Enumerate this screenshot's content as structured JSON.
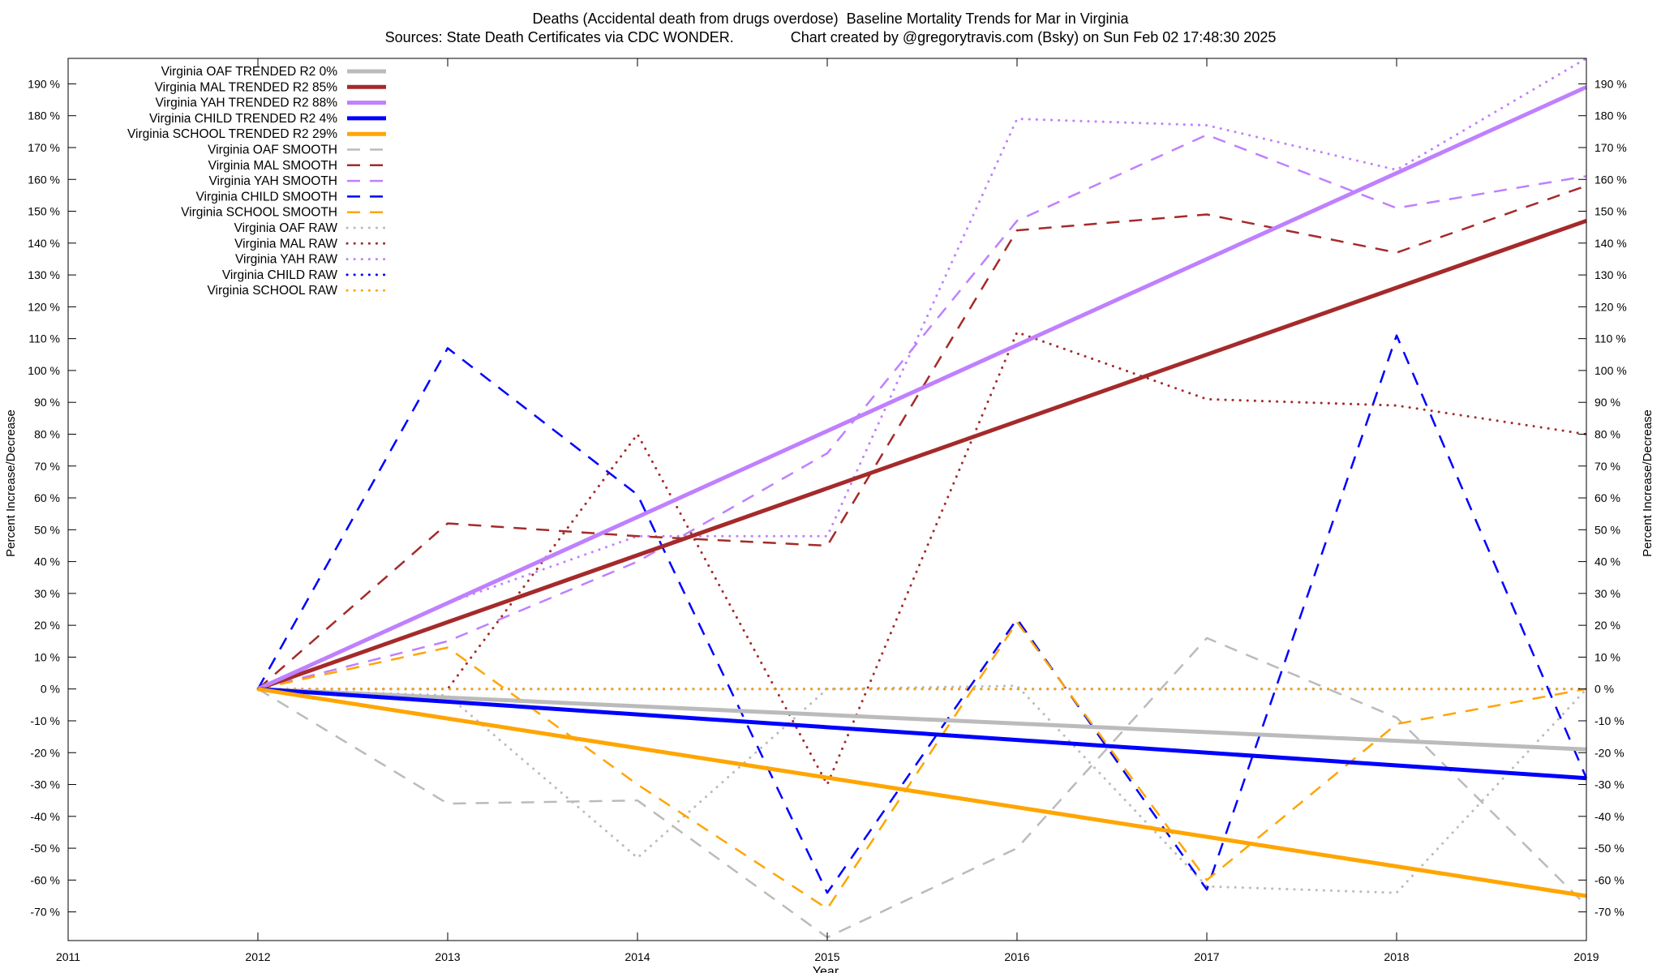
{
  "chart_data": {
    "type": "line",
    "title": "Deaths (Accidental death from drugs overdose)  Baseline Mortality Trends for Mar in Virginia",
    "subtitle": "Sources: State Death Certificates via CDC WONDER.              Chart created by @gregorytravis.com (Bsky) on Sun Feb 02 17:48:30 2025",
    "xlabel": "Year",
    "ylabel": "Percent Increase/Decrease",
    "xlim": [
      2011,
      2019
    ],
    "ylim": [
      -79,
      198
    ],
    "x_ticks": [
      "2011",
      "2012",
      "2013",
      "2014",
      "2015",
      "2016",
      "2017",
      "2018",
      "2019"
    ],
    "y_ticks": [
      190,
      180,
      170,
      160,
      150,
      140,
      130,
      120,
      110,
      100,
      90,
      80,
      70,
      60,
      50,
      40,
      30,
      20,
      10,
      0,
      -10,
      -20,
      -30,
      -40,
      -50,
      -60,
      -70
    ],
    "y_tick_suffix": " %",
    "grid": false,
    "legend_position": "top-left",
    "series": [
      {
        "name": "Virginia OAF TRENDED R2  0%",
        "style": "trend",
        "color": "#bbbbbb",
        "x": [
          2012,
          2019
        ],
        "y": [
          0,
          -19
        ]
      },
      {
        "name": "Virginia MAL TRENDED R2  85%",
        "style": "trend",
        "color": "#a52a2a",
        "x": [
          2012,
          2019
        ],
        "y": [
          0,
          147
        ]
      },
      {
        "name": "Virginia YAH TRENDED R2  88%",
        "style": "trend",
        "color": "#bf80ff",
        "x": [
          2012,
          2019
        ],
        "y": [
          0,
          189
        ]
      },
      {
        "name": "Virginia CHILD TRENDED R2  4%",
        "style": "trend",
        "color": "#0000ff",
        "x": [
          2012,
          2019
        ],
        "y": [
          0,
          -28
        ]
      },
      {
        "name": "Virginia SCHOOL TRENDED R2  29%",
        "style": "trend",
        "color": "#ffa500",
        "x": [
          2012,
          2019
        ],
        "y": [
          0,
          -65
        ]
      },
      {
        "name": "Virginia OAF SMOOTH",
        "style": "smooth",
        "color": "#bbbbbb",
        "x": [
          2012,
          2013,
          2014,
          2015,
          2016,
          2017,
          2018,
          2019
        ],
        "y": [
          0,
          -36,
          -35,
          -78,
          -50,
          16,
          -9,
          -68
        ]
      },
      {
        "name": "Virginia MAL SMOOTH",
        "style": "smooth",
        "color": "#a52a2a",
        "x": [
          2012,
          2013,
          2014,
          2015,
          2016,
          2017,
          2018,
          2019
        ],
        "y": [
          0,
          52,
          48,
          45,
          144,
          149,
          137,
          158
        ]
      },
      {
        "name": "Virginia YAH SMOOTH",
        "style": "smooth",
        "color": "#bf80ff",
        "x": [
          2012,
          2013,
          2014,
          2015,
          2016,
          2017,
          2018,
          2019
        ],
        "y": [
          0,
          15,
          40,
          74,
          147,
          174,
          151,
          161
        ]
      },
      {
        "name": "Virginia CHILD SMOOTH",
        "style": "smooth",
        "color": "#0000ff",
        "x": [
          2012,
          2013,
          2014,
          2015,
          2016,
          2017,
          2018,
          2019
        ],
        "y": [
          0,
          107,
          61,
          -64,
          22,
          -63,
          111,
          -28
        ]
      },
      {
        "name": "Virginia SCHOOL SMOOTH",
        "style": "smooth",
        "color": "#ffa500",
        "x": [
          2012,
          2013,
          2014,
          2015,
          2016,
          2017,
          2018,
          2019
        ],
        "y": [
          0,
          13,
          -30,
          -69,
          21,
          -60,
          -11,
          0
        ]
      },
      {
        "name": "Virginia OAF RAW",
        "style": "raw",
        "color": "#bbbbbb",
        "x": [
          2012,
          2013,
          2014,
          2015,
          2016,
          2017,
          2018,
          2019
        ],
        "y": [
          0,
          -2,
          -53,
          0,
          1,
          -62,
          -64,
          0
        ]
      },
      {
        "name": "Virginia MAL RAW",
        "style": "raw",
        "color": "#a52a2a",
        "x": [
          2012,
          2013,
          2014,
          2015,
          2016,
          2017,
          2018,
          2019
        ],
        "y": [
          0,
          0,
          80,
          -30,
          112,
          91,
          89,
          80
        ]
      },
      {
        "name": "Virginia YAH RAW",
        "style": "raw",
        "color": "#bf80ff",
        "x": [
          2012,
          2013,
          2014,
          2015,
          2016,
          2017,
          2018,
          2019
        ],
        "y": [
          0,
          27,
          48,
          48,
          179,
          177,
          163,
          198
        ]
      },
      {
        "name": "Virginia CHILD RAW",
        "style": "raw",
        "color": "#0000ff",
        "x": [
          2012,
          2013,
          2014,
          2015,
          2016,
          2017,
          2018,
          2019
        ],
        "y": [
          0,
          0,
          0,
          0,
          0,
          0,
          0,
          0
        ]
      },
      {
        "name": "Virginia SCHOOL RAW",
        "style": "raw",
        "color": "#ffa500",
        "x": [
          2012,
          2013,
          2014,
          2015,
          2016,
          2017,
          2018,
          2019
        ],
        "y": [
          0,
          0,
          0,
          0,
          0,
          0,
          0,
          0
        ]
      }
    ]
  }
}
